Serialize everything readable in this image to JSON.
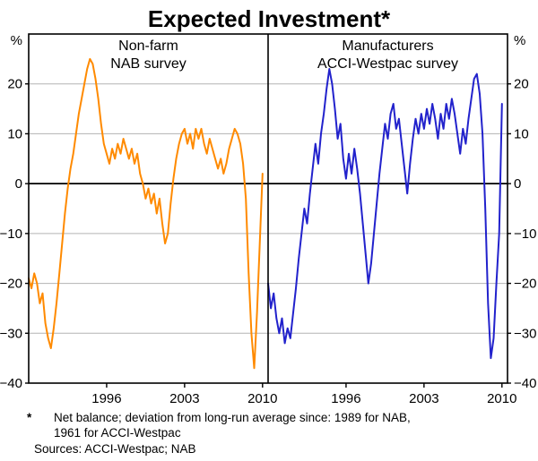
{
  "title": "Expected Investment*",
  "footnote": {
    "marker": "*",
    "line1": "Net balance; deviation from long-run average since: 1989 for NAB,",
    "line2": "1961 for ACCI-Westpac",
    "sources": "Sources:  ACCI-Westpac; NAB"
  },
  "chart_data": {
    "type": "line",
    "title": "Expected Investment*",
    "y_unit": "%",
    "ylim": [
      -40,
      30
    ],
    "yticks": [
      20,
      10,
      0,
      -10,
      -20,
      -30,
      -40
    ],
    "xticks": [
      1996,
      2003,
      2010
    ],
    "x_range": [
      1989,
      2010.5
    ],
    "grid": "horizontal",
    "panels": [
      {
        "label_line1": "Non-farm",
        "label_line2": "NAB survey",
        "series_name": "nab-nonfarm-expected-investment",
        "color": "#FF8A00",
        "x_start": 1989,
        "x_step": 0.25,
        "values": [
          -19,
          -21,
          -18,
          -20,
          -24,
          -22,
          -28,
          -31,
          -33,
          -29,
          -24,
          -18,
          -12,
          -6,
          -1,
          3,
          6,
          10,
          14,
          17,
          20,
          23,
          25,
          24,
          21,
          17,
          12,
          8,
          6,
          4,
          7,
          5,
          8,
          6,
          9,
          7,
          5,
          7,
          4,
          6,
          2,
          0,
          -3,
          -1,
          -4,
          -2,
          -6,
          -3,
          -8,
          -12,
          -10,
          -4,
          1,
          5,
          8,
          10,
          11,
          8,
          10,
          7,
          11,
          9,
          11,
          8,
          6,
          9,
          7,
          5,
          3,
          5,
          2,
          4,
          7,
          9,
          11,
          10,
          8,
          4,
          -3,
          -18,
          -30,
          -37,
          -26,
          -12,
          2
        ]
      },
      {
        "label_line1": "Manufacturers",
        "label_line2": "ACCI-Westpac survey",
        "series_name": "acci-westpac-manufacturers-expected-investment",
        "color": "#2222CC",
        "x_start": 1989,
        "x_step": 0.25,
        "values": [
          -20,
          -25,
          -22,
          -27,
          -30,
          -27,
          -32,
          -29,
          -31,
          -26,
          -21,
          -15,
          -10,
          -5,
          -8,
          -2,
          3,
          8,
          4,
          10,
          14,
          19,
          23,
          20,
          15,
          9,
          12,
          5,
          1,
          6,
          2,
          7,
          3,
          -2,
          -8,
          -14,
          -20,
          -16,
          -10,
          -4,
          2,
          7,
          12,
          9,
          14,
          16,
          11,
          13,
          8,
          3,
          -2,
          4,
          9,
          13,
          10,
          14,
          11,
          15,
          12,
          16,
          13,
          9,
          14,
          11,
          16,
          13,
          17,
          14,
          10,
          6,
          11,
          8,
          13,
          17,
          21,
          22,
          18,
          10,
          -5,
          -24,
          -35,
          -31,
          -20,
          -10,
          16
        ]
      }
    ]
  }
}
